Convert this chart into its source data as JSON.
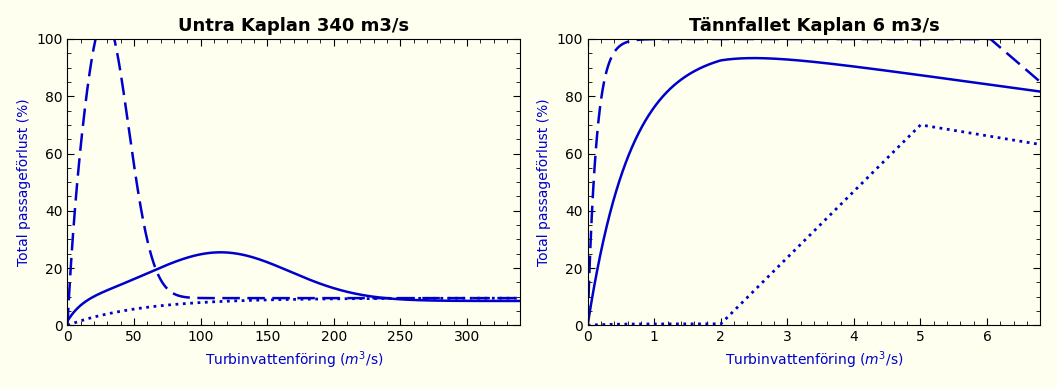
{
  "bg_color": "#fffff0",
  "line_color": "#0000cc",
  "plot1": {
    "title": "Untra Kaplan 340 m3/s",
    "xlabel": "Turbinvattenföring ($m^3$/s)",
    "ylabel": "Total passageförlust (%)",
    "xlim": [
      0,
      340
    ],
    "ylim": [
      0,
      100
    ],
    "xticks": [
      0,
      50,
      100,
      150,
      200,
      250,
      300
    ],
    "yticks": [
      0,
      20,
      40,
      60,
      80,
      100
    ]
  },
  "plot2": {
    "title": "Tännfallet Kaplan 6 m3/s",
    "xlabel": "Turbinvattenföring ($m^3$/s)",
    "ylabel": "Total passageförlust (%)",
    "xlim": [
      0,
      6.8
    ],
    "ylim": [
      0,
      100
    ],
    "xticks": [
      0,
      1,
      2,
      3,
      4,
      5,
      6
    ],
    "yticks": [
      0,
      20,
      40,
      60,
      80,
      100
    ]
  }
}
